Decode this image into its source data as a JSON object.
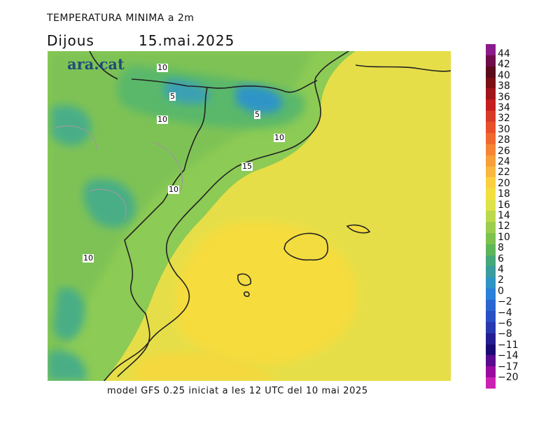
{
  "header": {
    "title": "TEMPERATURA MINIMA a 2m",
    "day": "Dijous",
    "date": "15.mai.2025"
  },
  "logo": {
    "text": "ara.cat"
  },
  "footer": {
    "text": "model GFS 0.25 iniciat a les 12 UTC del 10 mai 2025"
  },
  "contour_labels": [
    "10",
    "5",
    "10",
    "5",
    "10",
    "15",
    "10",
    "10"
  ],
  "legend": {
    "ticks": [
      "44",
      "42",
      "40",
      "38",
      "36",
      "34",
      "32",
      "30",
      "28",
      "26",
      "24",
      "22",
      "20",
      "18",
      "16",
      "14",
      "12",
      "10",
      "8",
      "6",
      "4",
      "2",
      "0",
      "−2",
      "−4",
      "−6",
      "−8",
      "−11",
      "−14",
      "−17",
      "−20"
    ],
    "colors": [
      "#8b1a8b",
      "#6e0d4a",
      "#5a0a1a",
      "#7a0f14",
      "#a0141a",
      "#c41e1e",
      "#d83a28",
      "#e8502c",
      "#f06a30",
      "#f58535",
      "#f7a03a",
      "#f9b840",
      "#fbd040",
      "#f3e040",
      "#dde34a",
      "#bcd84c",
      "#9ccd4e",
      "#7cc24e",
      "#5eb65a",
      "#44a878",
      "#3a9c9c",
      "#2e94c4",
      "#2a80d8",
      "#2a66d0",
      "#2850c4",
      "#2838ae",
      "#241e92",
      "#1a0a74",
      "#5a0a8e",
      "#9a0a9e",
      "#cc22b4"
    ],
    "accent_sea": "#f0e044",
    "accent_land": "#8bca54"
  }
}
